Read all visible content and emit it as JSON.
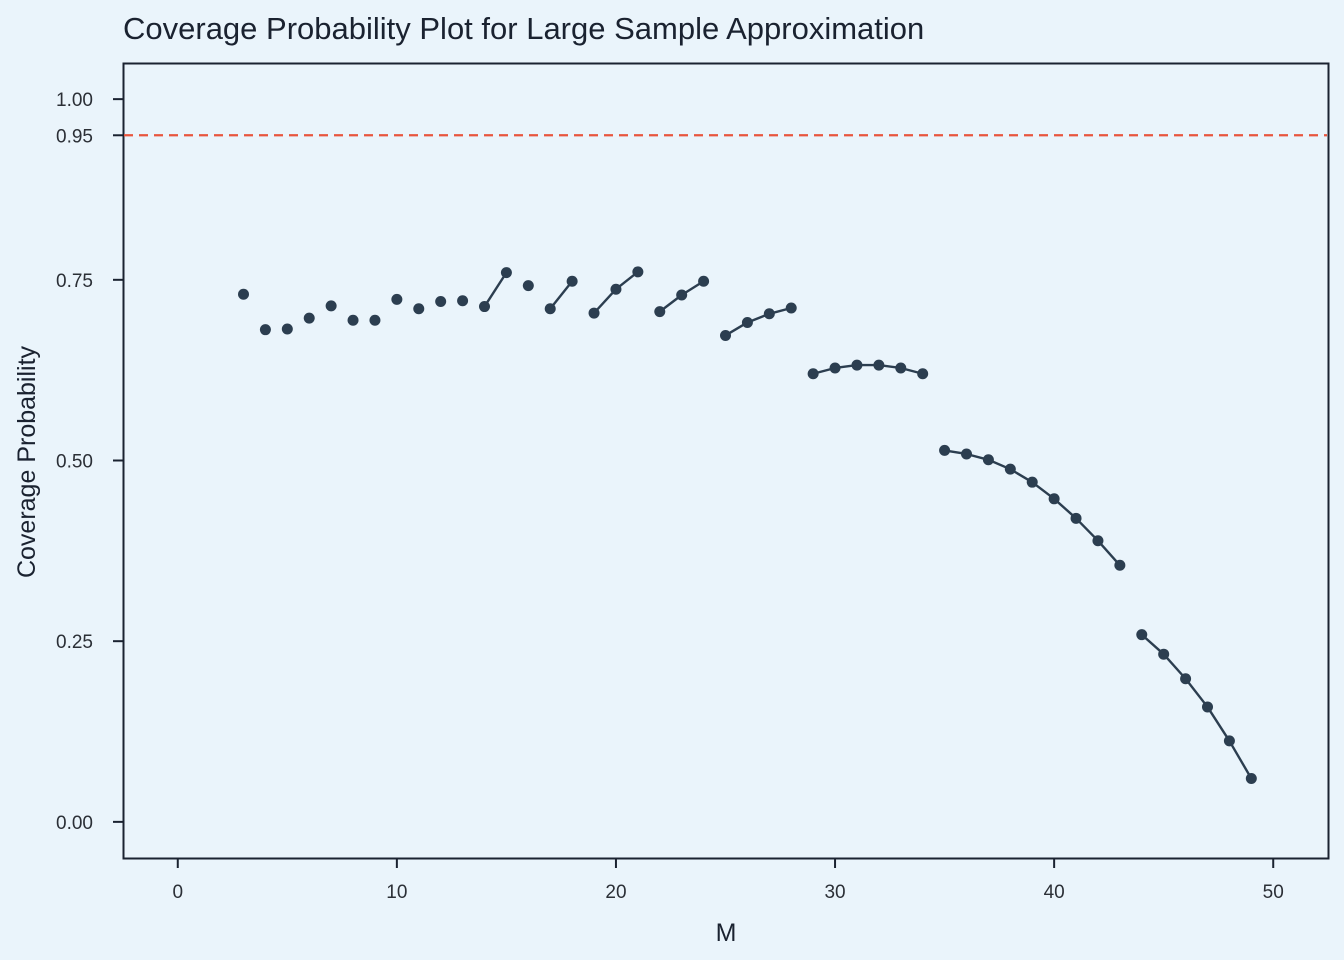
{
  "chart_data": {
    "type": "line",
    "title": "Coverage Probability Plot for Large Sample Approximation",
    "xlabel": "M",
    "ylabel": "Coverage Probability",
    "xlim": [
      -2.5,
      52.5
    ],
    "ylim": [
      -0.05,
      1.05
    ],
    "xticks": [
      "0",
      "10",
      "20",
      "30",
      "40",
      "50"
    ],
    "yticks": [
      "0.00",
      "0.25",
      "0.50",
      "0.75",
      "0.95",
      "1.00"
    ],
    "grid": false,
    "reference_line": {
      "y": 0.95,
      "style": "dashed",
      "color": "#e8553e"
    },
    "colors": {
      "series": "#2c3e50",
      "background": "#eaf4fb"
    },
    "series": [
      {
        "segments": [
          {
            "x": [
              3
            ],
            "y": [
              0.73
            ]
          },
          {
            "x": [
              4
            ],
            "y": [
              0.681
            ]
          },
          {
            "x": [
              5
            ],
            "y": [
              0.682
            ]
          },
          {
            "x": [
              6
            ],
            "y": [
              0.697
            ]
          },
          {
            "x": [
              7
            ],
            "y": [
              0.714
            ]
          },
          {
            "x": [
              8
            ],
            "y": [
              0.694
            ]
          },
          {
            "x": [
              9
            ],
            "y": [
              0.694
            ]
          },
          {
            "x": [
              10
            ],
            "y": [
              0.723
            ]
          },
          {
            "x": [
              11
            ],
            "y": [
              0.71
            ]
          },
          {
            "x": [
              12
            ],
            "y": [
              0.72
            ]
          },
          {
            "x": [
              13
            ],
            "y": [
              0.721
            ]
          },
          {
            "x": [
              14,
              15
            ],
            "y": [
              0.713,
              0.76
            ]
          },
          {
            "x": [
              16
            ],
            "y": [
              0.742
            ]
          },
          {
            "x": [
              17,
              18
            ],
            "y": [
              0.71,
              0.748
            ]
          },
          {
            "x": [
              19,
              20,
              21
            ],
            "y": [
              0.704,
              0.737,
              0.761
            ]
          },
          {
            "x": [
              22,
              23,
              24
            ],
            "y": [
              0.706,
              0.729,
              0.748
            ]
          },
          {
            "x": [
              25,
              26,
              27,
              28
            ],
            "y": [
              0.673,
              0.691,
              0.703,
              0.711
            ]
          },
          {
            "x": [
              29,
              30,
              31,
              32,
              33,
              34
            ],
            "y": [
              0.62,
              0.628,
              0.632,
              0.632,
              0.628,
              0.62
            ]
          },
          {
            "x": [
              35,
              36,
              37,
              38,
              39,
              40,
              41,
              42,
              43
            ],
            "y": [
              0.514,
              0.509,
              0.501,
              0.488,
              0.47,
              0.447,
              0.42,
              0.389,
              0.355
            ]
          },
          {
            "x": [
              44,
              45,
              46,
              47,
              48,
              49
            ],
            "y": [
              0.259,
              0.232,
              0.198,
              0.159,
              0.112,
              0.06
            ]
          }
        ]
      }
    ]
  }
}
